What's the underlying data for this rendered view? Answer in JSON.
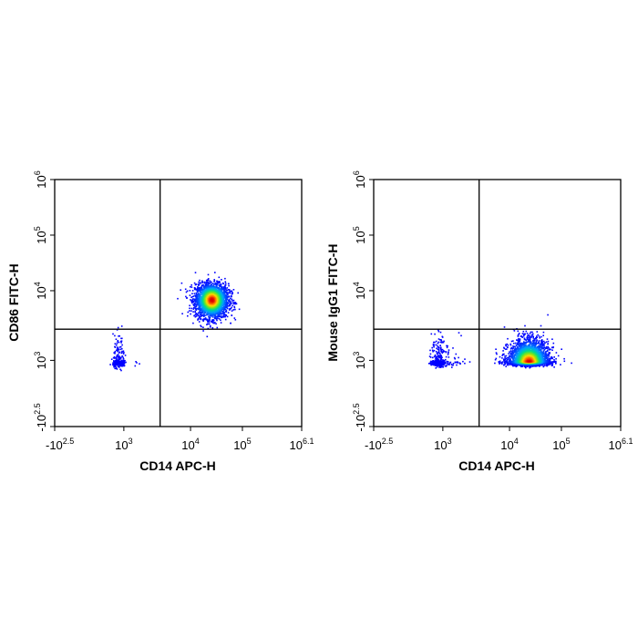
{
  "chart_data": [
    {
      "type": "scatter",
      "panel": "left",
      "xlabel": "CD14 APC-H",
      "ylabel": "CD86 FITC-H",
      "x_scale": "biexponential",
      "y_scale": "biexponential",
      "x_ticks": [
        {
          "value": -316,
          "base": "-10",
          "exp": "2.5"
        },
        {
          "value": 1000,
          "base": "10",
          "exp": "3"
        },
        {
          "value": 10000,
          "base": "10",
          "exp": "4"
        },
        {
          "value": 100000,
          "base": "10",
          "exp": "5"
        },
        {
          "value": 1258925,
          "base": "10",
          "exp": "6.1"
        }
      ],
      "y_ticks": [
        {
          "value": -316,
          "base": "-10",
          "exp": "2.5"
        },
        {
          "value": 1000,
          "base": "10",
          "exp": "3"
        },
        {
          "value": 10000,
          "base": "10",
          "exp": "4"
        },
        {
          "value": 100000,
          "base": "10",
          "exp": "5"
        },
        {
          "value": 1000000,
          "base": "10",
          "exp": "6"
        }
      ],
      "quadrant_gate": {
        "x": 3500,
        "y": 2800
      },
      "populations": [
        {
          "center_x": 25000,
          "center_y": 7500,
          "spread_x_decades": 0.16,
          "spread_y_decades": 0.13,
          "events": 2600
        },
        {
          "center_x": 380,
          "center_y": 800,
          "spread_x_decades": 0.25,
          "spread_y_decades": 0.22,
          "events": 260
        }
      ],
      "grid": false
    },
    {
      "type": "scatter",
      "panel": "right",
      "xlabel": "CD14 APC-H",
      "ylabel": "Mouse IgG1 FITC-H",
      "x_scale": "biexponential",
      "y_scale": "biexponential",
      "x_ticks": [
        {
          "value": -316,
          "base": "-10",
          "exp": "2.5"
        },
        {
          "value": 1000,
          "base": "10",
          "exp": "3"
        },
        {
          "value": 10000,
          "base": "10",
          "exp": "4"
        },
        {
          "value": 100000,
          "base": "10",
          "exp": "5"
        },
        {
          "value": 1258925,
          "base": "10",
          "exp": "6.1"
        }
      ],
      "y_ticks": [
        {
          "value": -316,
          "base": "-10",
          "exp": "2.5"
        },
        {
          "value": 1000,
          "base": "10",
          "exp": "3"
        },
        {
          "value": 10000,
          "base": "10",
          "exp": "4"
        },
        {
          "value": 100000,
          "base": "10",
          "exp": "5"
        },
        {
          "value": 1000000,
          "base": "10",
          "exp": "6"
        }
      ],
      "quadrant_gate": {
        "x": 3500,
        "y": 2800
      },
      "populations": [
        {
          "center_x": 23000,
          "center_y": 950,
          "spread_x_decades": 0.19,
          "spread_y_decades": 0.16,
          "events": 3200
        },
        {
          "center_x": 450,
          "center_y": 850,
          "spread_x_decades": 0.3,
          "spread_y_decades": 0.2,
          "events": 380
        }
      ],
      "grid": false
    }
  ]
}
